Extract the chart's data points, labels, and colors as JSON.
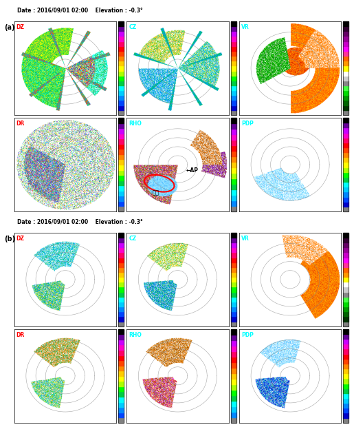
{
  "title": "Date : 2016/09/01 02:00    Elevation : -0.3°",
  "label_a": "(a)",
  "label_b": "(b)",
  "panels_row1": [
    "DZ",
    "CZ",
    "VR"
  ],
  "panels_row2": [
    "DR",
    "RHO",
    "PDP"
  ],
  "cb_dz": [
    "#000000",
    "#660099",
    "#cc00ff",
    "#ff00cc",
    "#ff0066",
    "#ff0000",
    "#ff4400",
    "#ff8800",
    "#ffcc00",
    "#ffff00",
    "#aaff00",
    "#00ff00",
    "#00cc44",
    "#00ffff",
    "#00ccff",
    "#0088ff",
    "#0044ff",
    "#0000cc",
    "#808080"
  ],
  "cb_cz": [
    "#000000",
    "#660099",
    "#cc00ff",
    "#ff00cc",
    "#ff0066",
    "#ff0000",
    "#ff4400",
    "#ff8800",
    "#ffcc00",
    "#ffff00",
    "#aaff00",
    "#00ff00",
    "#00cc44",
    "#00ffff",
    "#00ccff",
    "#0088ff",
    "#0044ff",
    "#0000cc",
    "#808080"
  ],
  "cb_vr": [
    "#000000",
    "#330033",
    "#660066",
    "#990099",
    "#cc00cc",
    "#ff00ff",
    "#ff3399",
    "#ff6600",
    "#ff9900",
    "#ffff00",
    "#ffffff",
    "#cccccc",
    "#888888",
    "#44ff44",
    "#00dd00",
    "#009900",
    "#006600",
    "#003300",
    "#808080"
  ],
  "cb_dr": [
    "#000000",
    "#660099",
    "#cc00ff",
    "#ff00cc",
    "#ff0066",
    "#ff0000",
    "#ff4400",
    "#ff8800",
    "#ffcc00",
    "#ffff00",
    "#aaff00",
    "#00ff00",
    "#00cc44",
    "#00ffff",
    "#00ccff",
    "#0088ff",
    "#0044ff",
    "#808080"
  ],
  "cb_rho": [
    "#000000",
    "#660099",
    "#cc00ff",
    "#ff00cc",
    "#ff0066",
    "#ff0000",
    "#ff4400",
    "#ff8800",
    "#ffcc00",
    "#ffff00",
    "#aaff00",
    "#00ff00",
    "#00cc44",
    "#00ffff",
    "#00ccff",
    "#0088ff",
    "#808080"
  ],
  "cb_pdp": [
    "#000000",
    "#660099",
    "#cc00ff",
    "#ff00cc",
    "#ff0066",
    "#ff0000",
    "#ff4400",
    "#ff8800",
    "#ffcc00",
    "#ffff00",
    "#aaff00",
    "#00ff00",
    "#00cc44",
    "#00ffff",
    "#00ccff",
    "#0088ff",
    "#0044ff",
    "#0000cc",
    "#808080"
  ],
  "fig_width": 5.15,
  "fig_height": 6.2,
  "dpi": 100
}
